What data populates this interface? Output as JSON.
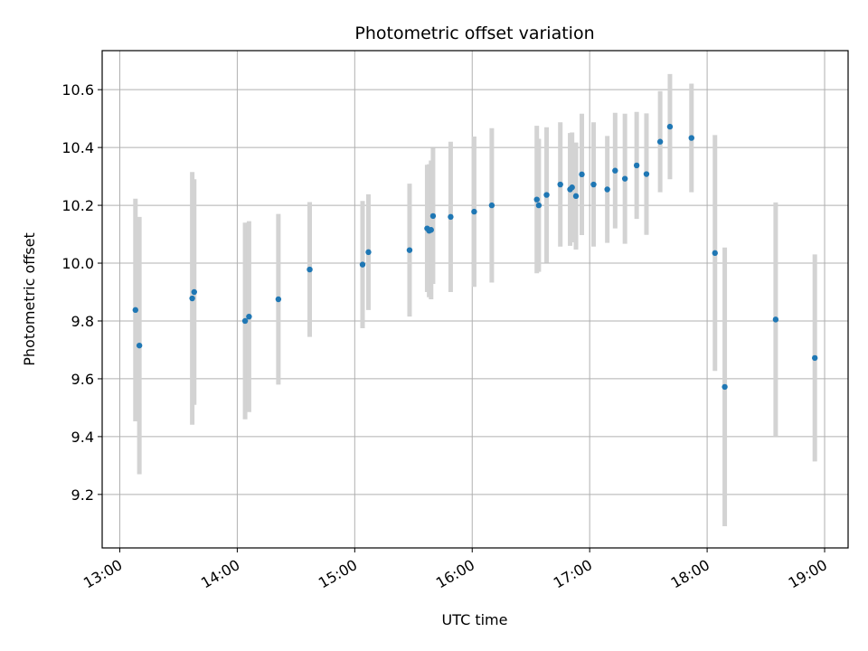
{
  "chart_data": {
    "type": "scatter",
    "title": "Photometric offset variation",
    "xlabel": "UTC time",
    "ylabel": "Photometric offset",
    "x_is_time": true,
    "xlim": [
      "12:51",
      "19:12"
    ],
    "ylim": [
      9.015,
      10.735
    ],
    "x_ticks": [
      "13:00",
      "14:00",
      "15:00",
      "16:00",
      "17:00",
      "18:00",
      "19:00"
    ],
    "y_ticks": [
      9.2,
      9.4,
      9.6,
      9.8,
      10.0,
      10.2,
      10.4,
      10.6
    ],
    "y_tick_labels": [
      "9.2",
      "9.4",
      "9.6",
      "9.8",
      "10.0",
      "10.2",
      "10.4",
      "10.6"
    ],
    "grid": true,
    "colors": {
      "point": "#1f77b4",
      "errorbar": "#d3d3d3",
      "grid": "#b0b0b0",
      "axes": "#000000"
    },
    "points": [
      {
        "t": "13:08",
        "y": 9.838,
        "err": 0.385
      },
      {
        "t": "13:10",
        "y": 9.715,
        "err": 0.445
      },
      {
        "t": "13:37",
        "y": 9.878,
        "err": 0.437
      },
      {
        "t": "13:38",
        "y": 9.9,
        "err": 0.39
      },
      {
        "t": "14:04",
        "y": 9.8,
        "err": 0.34
      },
      {
        "t": "14:06",
        "y": 9.815,
        "err": 0.33
      },
      {
        "t": "14:21",
        "y": 9.875,
        "err": 0.295
      },
      {
        "t": "14:37",
        "y": 9.978,
        "err": 0.233
      },
      {
        "t": "15:04",
        "y": 9.995,
        "err": 0.22
      },
      {
        "t": "15:07",
        "y": 10.038,
        "err": 0.2
      },
      {
        "t": "15:28",
        "y": 10.045,
        "err": 0.23
      },
      {
        "t": "15:37",
        "y": 10.12,
        "err": 0.22
      },
      {
        "t": "15:38",
        "y": 10.112,
        "err": 0.23
      },
      {
        "t": "15:39",
        "y": 10.115,
        "err": 0.24
      },
      {
        "t": "15:40",
        "y": 10.163,
        "err": 0.235
      },
      {
        "t": "15:49",
        "y": 10.16,
        "err": 0.26
      },
      {
        "t": "16:01",
        "y": 10.178,
        "err": 0.26
      },
      {
        "t": "16:10",
        "y": 10.2,
        "err": 0.267
      },
      {
        "t": "16:33",
        "y": 10.22,
        "err": 0.255
      },
      {
        "t": "16:34",
        "y": 10.2,
        "err": 0.23
      },
      {
        "t": "16:38",
        "y": 10.236,
        "err": 0.234
      },
      {
        "t": "16:45",
        "y": 10.272,
        "err": 0.215
      },
      {
        "t": "16:50",
        "y": 10.255,
        "err": 0.195
      },
      {
        "t": "16:51",
        "y": 10.262,
        "err": 0.19
      },
      {
        "t": "16:53",
        "y": 10.232,
        "err": 0.185
      },
      {
        "t": "16:56",
        "y": 10.307,
        "err": 0.21
      },
      {
        "t": "17:02",
        "y": 10.272,
        "err": 0.215
      },
      {
        "t": "17:09",
        "y": 10.255,
        "err": 0.185
      },
      {
        "t": "17:13",
        "y": 10.32,
        "err": 0.2
      },
      {
        "t": "17:18",
        "y": 10.292,
        "err": 0.225
      },
      {
        "t": "17:24",
        "y": 10.338,
        "err": 0.185
      },
      {
        "t": "17:29",
        "y": 10.308,
        "err": 0.21
      },
      {
        "t": "17:36",
        "y": 10.42,
        "err": 0.175
      },
      {
        "t": "17:41",
        "y": 10.472,
        "err": 0.182
      },
      {
        "t": "17:52",
        "y": 10.433,
        "err": 0.188
      },
      {
        "t": "18:04",
        "y": 10.035,
        "err": 0.408
      },
      {
        "t": "18:09",
        "y": 9.572,
        "err": 0.482
      },
      {
        "t": "18:35",
        "y": 9.805,
        "err": 0.405
      },
      {
        "t": "18:55",
        "y": 9.672,
        "err": 0.358
      }
    ]
  }
}
